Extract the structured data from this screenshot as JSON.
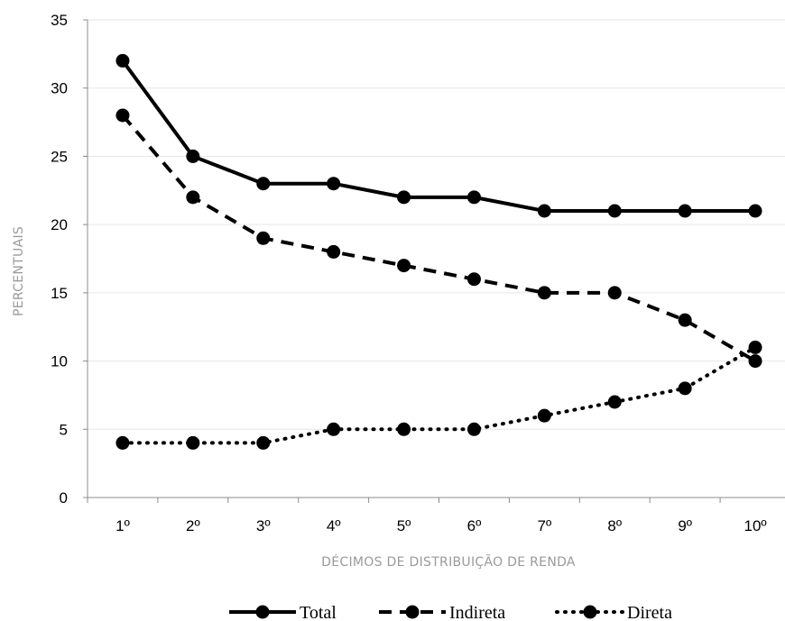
{
  "chart_data": {
    "type": "line",
    "title": "",
    "xlabel": "DÉCIMOS DE DISTRIBUIÇÃO DE RENDA",
    "ylabel": "PERCENTUAIS",
    "ylim": [
      0,
      35
    ],
    "yticks": [
      0,
      5,
      10,
      15,
      20,
      25,
      30,
      35
    ],
    "grid": true,
    "legend_position": "bottom",
    "categories": [
      "1º",
      "2º",
      "3º",
      "4º",
      "5º",
      "6º",
      "7º",
      "8º",
      "9º",
      "10º"
    ],
    "series": [
      {
        "name": "Total",
        "style": "solid",
        "values": [
          32,
          25,
          23,
          23,
          22,
          22,
          21,
          21,
          21,
          21
        ]
      },
      {
        "name": "Indireta",
        "style": "dashed",
        "values": [
          28,
          22,
          19,
          18,
          17,
          16,
          15,
          15,
          13,
          10
        ]
      },
      {
        "name": "Direta",
        "style": "dotted",
        "values": [
          4,
          4,
          4,
          5,
          5,
          5,
          6,
          7,
          8,
          11
        ]
      }
    ],
    "colors": {
      "line": "#000000",
      "grid": "#e6e6e6",
      "axis": "#8c8c8c",
      "axis_title": "#9a9a9a"
    }
  }
}
